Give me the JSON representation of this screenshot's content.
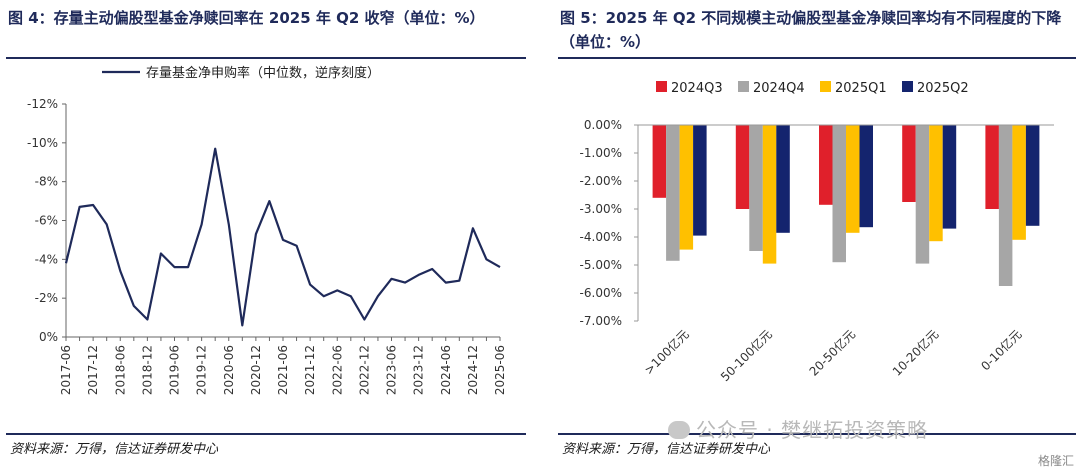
{
  "left": {
    "title": "图 4：存量主动偏股型基金净赎回率在 2025 年 Q2 收窄（单位：%）",
    "source": "资料来源：万得，信达证券研发中心"
  },
  "right": {
    "title": "图 5：2025 年 Q2 不同规模主动偏股型基金净赎回率均有不同程度的下降（单位：%）",
    "source": "资料来源：万得，信达证券研发中心"
  },
  "watermark": "公众号 · 樊继拓投资策略",
  "logo": "格隆汇",
  "colors": {
    "line": "#1f2a5a",
    "q3": "#e0202b",
    "q4": "#a6a6a6",
    "q1": "#ffc000",
    "q2": "#14246e"
  },
  "chart_data": [
    {
      "type": "line",
      "title": "",
      "series": [
        {
          "name": "存量基金净申购率（中位数，逆序刻度）",
          "x": [
            "2017-06",
            "2017-09",
            "2017-12",
            "2018-03",
            "2018-06",
            "2018-09",
            "2018-12",
            "2019-03",
            "2019-06",
            "2019-09",
            "2019-12",
            "2020-03",
            "2020-06",
            "2020-09",
            "2020-12",
            "2021-03",
            "2021-06",
            "2021-09",
            "2021-12",
            "2022-03",
            "2022-06",
            "2022-09",
            "2022-12",
            "2023-03",
            "2023-06",
            "2023-09",
            "2023-12",
            "2024-03",
            "2024-06",
            "2024-09",
            "2024-12",
            "2025-03",
            "2025-06"
          ],
          "values": [
            -3.8,
            -6.7,
            -6.8,
            -5.8,
            -3.4,
            -1.6,
            -0.9,
            -4.3,
            -3.6,
            -3.6,
            -5.8,
            -9.7,
            -5.8,
            -0.6,
            -5.3,
            -7.0,
            -5.0,
            -4.7,
            -2.7,
            -2.1,
            -2.4,
            -2.1,
            -0.9,
            -2.1,
            -3.0,
            -2.8,
            -3.2,
            -3.5,
            -2.8,
            -2.9,
            -5.6,
            -4.0,
            -3.6
          ]
        }
      ],
      "xticks": [
        "2017-06",
        "2017-12",
        "2018-06",
        "2018-12",
        "2019-06",
        "2019-12",
        "2020-06",
        "2020-12",
        "2021-06",
        "2021-12",
        "2022-06",
        "2022-12",
        "2023-06",
        "2023-12",
        "2024-06",
        "2024-12",
        "2025-06"
      ],
      "yticks": [
        "-12%",
        "-10%",
        "-8%",
        "-6%",
        "-4%",
        "-2%",
        "0%"
      ],
      "ylim": [
        0,
        -12
      ],
      "yaxis_inverted": true,
      "legend": "top"
    },
    {
      "type": "bar",
      "title": "",
      "categories": [
        ">100亿元",
        "50-100亿元",
        "20-50亿元",
        "10-20亿元",
        "0-10亿元"
      ],
      "series": [
        {
          "name": "2024Q3",
          "values": [
            -2.6,
            -3.0,
            -2.85,
            -2.75,
            -3.0
          ]
        },
        {
          "name": "2024Q4",
          "values": [
            -4.85,
            -4.5,
            -4.9,
            -4.95,
            -5.75
          ]
        },
        {
          "name": "2025Q1",
          "values": [
            -4.45,
            -4.95,
            -3.85,
            -4.15,
            -4.1
          ]
        },
        {
          "name": "2025Q2",
          "values": [
            -3.95,
            -3.85,
            -3.65,
            -3.7,
            -3.6
          ]
        }
      ],
      "yticks": [
        "0.00%",
        "-1.00%",
        "-2.00%",
        "-3.00%",
        "-4.00%",
        "-5.00%",
        "-6.00%",
        "-7.00%"
      ],
      "ylim": [
        -7,
        0
      ],
      "legend": "top"
    }
  ]
}
